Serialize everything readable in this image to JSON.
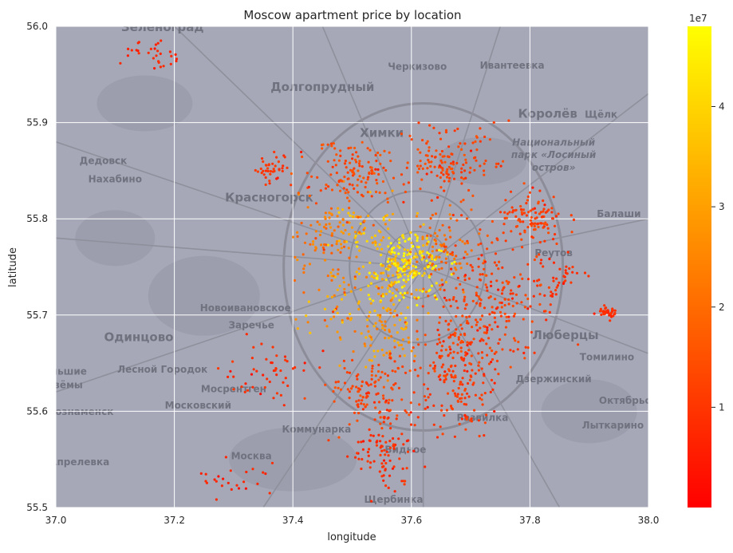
{
  "chart_data": {
    "type": "scatter",
    "title": "Moscow apartment price by location",
    "xlabel": "longitude",
    "ylabel": "latitude",
    "xlim": [
      37.0,
      38.0
    ],
    "ylim": [
      55.5,
      56.0
    ],
    "xticks": [
      "37.0",
      "37.2",
      "37.4",
      "37.6",
      "37.8",
      "38.0"
    ],
    "yticks": [
      "55.5",
      "55.6",
      "55.7",
      "55.8",
      "55.9",
      "56.0"
    ],
    "grid": true,
    "colorbar": {
      "range": [
        0,
        48000000
      ],
      "ticks": [
        "1",
        "2",
        "3",
        "4"
      ],
      "exponent_label": "1e7",
      "colors": [
        "#ff0000",
        "#ff8000",
        "#ffff00"
      ]
    },
    "background": {
      "type": "map",
      "place_labels": [
        "Зеленоград",
        "Черкизово",
        "Ивантеевка",
        "Долгопрудный",
        "Королёв",
        "Щёлк",
        "Химки",
        "Национальный",
        "парк «Лосиный",
        "остров»",
        "Дедовск",
        "Нахабино",
        "Красногорск",
        "Балаши",
        "Реутов",
        "Новоивановское",
        "Заречье",
        "Одинцово",
        "Люберцы",
        "Томилино",
        "Лесной Городок",
        "Дзержинский",
        "Октябрьс",
        "Мосрентген",
        "Московский",
        "Развилка",
        "Краснознаменск",
        "Лыткарино",
        "Коммунарка",
        "Москва",
        "Видное",
        "Апрелевка",
        "Щербинка",
        "Большие",
        "Вязёмы"
      ]
    },
    "clusters": [
      {
        "lon": 37.6,
        "lat": 55.755,
        "spread_lon": 0.035,
        "spread_lat": 0.025,
        "price": 45000000,
        "n": 170
      },
      {
        "lon": 37.56,
        "lat": 55.73,
        "spread_lon": 0.04,
        "spread_lat": 0.025,
        "price": 38000000,
        "n": 90
      },
      {
        "lon": 37.52,
        "lat": 55.79,
        "spread_lon": 0.05,
        "spread_lat": 0.02,
        "price": 33000000,
        "n": 70
      },
      {
        "lon": 37.56,
        "lat": 55.68,
        "spread_lon": 0.04,
        "spread_lat": 0.025,
        "price": 28000000,
        "n": 80
      },
      {
        "lon": 37.48,
        "lat": 55.71,
        "spread_lon": 0.04,
        "spread_lat": 0.03,
        "price": 30000000,
        "n": 60
      },
      {
        "lon": 37.66,
        "lat": 55.77,
        "spread_lon": 0.04,
        "spread_lat": 0.03,
        "price": 20000000,
        "n": 90
      },
      {
        "lon": 37.45,
        "lat": 55.78,
        "spread_lon": 0.04,
        "spread_lat": 0.03,
        "price": 22000000,
        "n": 70
      },
      {
        "lon": 37.5,
        "lat": 55.85,
        "spread_lon": 0.06,
        "spread_lat": 0.025,
        "price": 14000000,
        "n": 130
      },
      {
        "lon": 37.66,
        "lat": 55.86,
        "spread_lon": 0.06,
        "spread_lat": 0.025,
        "price": 13000000,
        "n": 140
      },
      {
        "lon": 37.8,
        "lat": 55.8,
        "spread_lon": 0.04,
        "spread_lat": 0.02,
        "price": 12000000,
        "n": 110
      },
      {
        "lon": 37.74,
        "lat": 55.72,
        "spread_lon": 0.07,
        "spread_lat": 0.04,
        "price": 12000000,
        "n": 170
      },
      {
        "lon": 37.67,
        "lat": 55.63,
        "spread_lon": 0.06,
        "spread_lat": 0.04,
        "price": 11000000,
        "n": 160
      },
      {
        "lon": 37.53,
        "lat": 55.62,
        "spread_lon": 0.05,
        "spread_lat": 0.03,
        "price": 13000000,
        "n": 120
      },
      {
        "lon": 37.55,
        "lat": 55.56,
        "spread_lon": 0.04,
        "spread_lat": 0.03,
        "price": 9000000,
        "n": 90
      },
      {
        "lon": 37.36,
        "lat": 55.85,
        "spread_lon": 0.025,
        "spread_lat": 0.012,
        "price": 10000000,
        "n": 40
      },
      {
        "lon": 37.36,
        "lat": 55.64,
        "spread_lon": 0.05,
        "spread_lat": 0.02,
        "price": 9000000,
        "n": 50
      },
      {
        "lon": 37.93,
        "lat": 55.703,
        "spread_lon": 0.012,
        "spread_lat": 0.005,
        "price": 8000000,
        "n": 40
      },
      {
        "lon": 37.85,
        "lat": 55.74,
        "spread_lon": 0.03,
        "spread_lat": 0.02,
        "price": 9000000,
        "n": 40
      },
      {
        "lon": 37.16,
        "lat": 55.97,
        "spread_lon": 0.03,
        "spread_lat": 0.01,
        "price": 7000000,
        "n": 30
      },
      {
        "lon": 37.3,
        "lat": 55.53,
        "spread_lon": 0.05,
        "spread_lat": 0.02,
        "price": 7000000,
        "n": 25
      },
      {
        "lon": 37.7,
        "lat": 55.67,
        "spread_lon": 0.05,
        "spread_lat": 0.03,
        "price": 12000000,
        "n": 90
      }
    ]
  }
}
